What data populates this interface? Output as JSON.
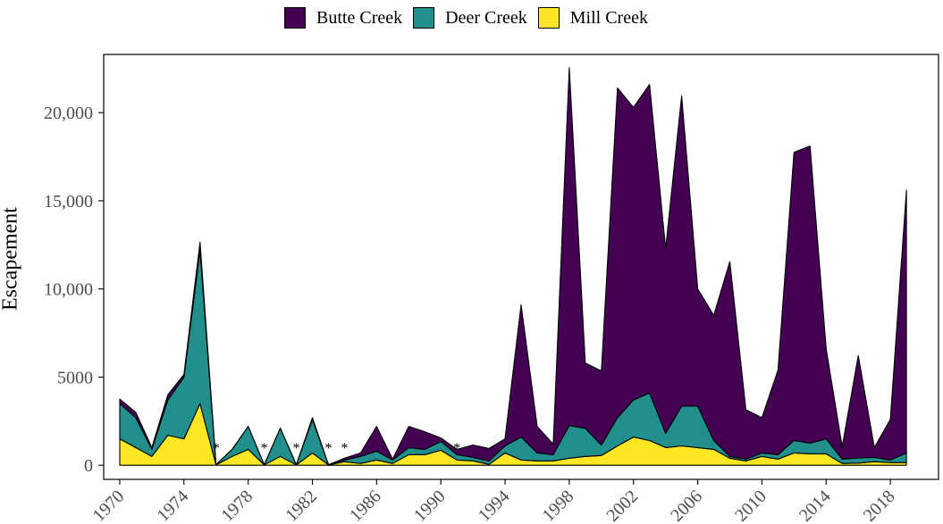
{
  "chart_data": {
    "type": "area",
    "stacked": true,
    "title": "",
    "xlabel": "",
    "ylabel": "Escapement",
    "xlim": [
      1969,
      2021
    ],
    "ylim": [
      -800,
      23300
    ],
    "x_ticks": [
      "1970",
      "1974",
      "1978",
      "1982",
      "1986",
      "1990",
      "1994",
      "1998",
      "2002",
      "2006",
      "2010",
      "2014",
      "2018"
    ],
    "y_ticks": [
      {
        "value": 0,
        "label": "0"
      },
      {
        "value": 5000,
        "label": "5000"
      },
      {
        "value": 10000,
        "label": "10,000"
      },
      {
        "value": 15000,
        "label": "15,000"
      },
      {
        "value": 20000,
        "label": "20,000"
      }
    ],
    "legend_position": "top",
    "grid": false,
    "years": [
      1970,
      1971,
      1972,
      1973,
      1974,
      1975,
      1976,
      1977,
      1978,
      1979,
      1980,
      1981,
      1982,
      1983,
      1984,
      1985,
      1986,
      1987,
      1988,
      1989,
      1990,
      1991,
      1992,
      1993,
      1994,
      1995,
      1996,
      1997,
      1998,
      1999,
      2000,
      2001,
      2002,
      2003,
      2004,
      2005,
      2006,
      2007,
      2008,
      2009,
      2010,
      2011,
      2012,
      2013,
      2014,
      2015,
      2016,
      2017,
      2018,
      2019
    ],
    "series": [
      {
        "name": "Mill Creek",
        "color": "#FDE725",
        "values": [
          1500,
          1000,
          500,
          1700,
          1500,
          3500,
          20,
          500,
          900,
          20,
          500,
          20,
          700,
          20,
          200,
          100,
          300,
          100,
          600,
          600,
          850,
          300,
          250,
          50,
          700,
          300,
          250,
          250,
          400,
          500,
          550,
          1100,
          1600,
          1400,
          1000,
          1100,
          1000,
          900,
          400,
          250,
          500,
          350,
          700,
          650,
          650,
          100,
          120,
          200,
          150,
          150
        ]
      },
      {
        "name": "Deer Creek",
        "color": "#21908C",
        "values": [
          2000,
          1700,
          400,
          2000,
          3500,
          8700,
          10,
          400,
          1300,
          10,
          1600,
          10,
          1900,
          10,
          100,
          400,
          500,
          200,
          400,
          300,
          500,
          300,
          200,
          200,
          400,
          1300,
          450,
          350,
          1850,
          1600,
          600,
          1600,
          2100,
          2700,
          800,
          2250,
          2350,
          500,
          100,
          100,
          200,
          250,
          700,
          600,
          850,
          250,
          300,
          250,
          150,
          550
        ]
      },
      {
        "name": "Butte Creek",
        "color": "#440154",
        "values": [
          250,
          300,
          100,
          300,
          150,
          450,
          0,
          0,
          0,
          0,
          0,
          0,
          100,
          0,
          100,
          200,
          1400,
          50,
          1200,
          1000,
          200,
          300,
          700,
          700,
          400,
          7500,
          1500,
          600,
          20300,
          3700,
          4200,
          18700,
          16600,
          17500,
          10500,
          17600,
          6650,
          7100,
          11050,
          2800,
          2000,
          4800,
          16350,
          16850,
          5100,
          700,
          5800,
          550,
          2300,
          14900
        ]
      }
    ],
    "annotations": [
      {
        "x": 1976,
        "label": "*"
      },
      {
        "x": 1979,
        "label": "*"
      },
      {
        "x": 1981,
        "label": "*"
      },
      {
        "x": 1983,
        "label": "*"
      },
      {
        "x": 1984,
        "label": "*"
      },
      {
        "x": 1991,
        "label": "*"
      }
    ]
  }
}
